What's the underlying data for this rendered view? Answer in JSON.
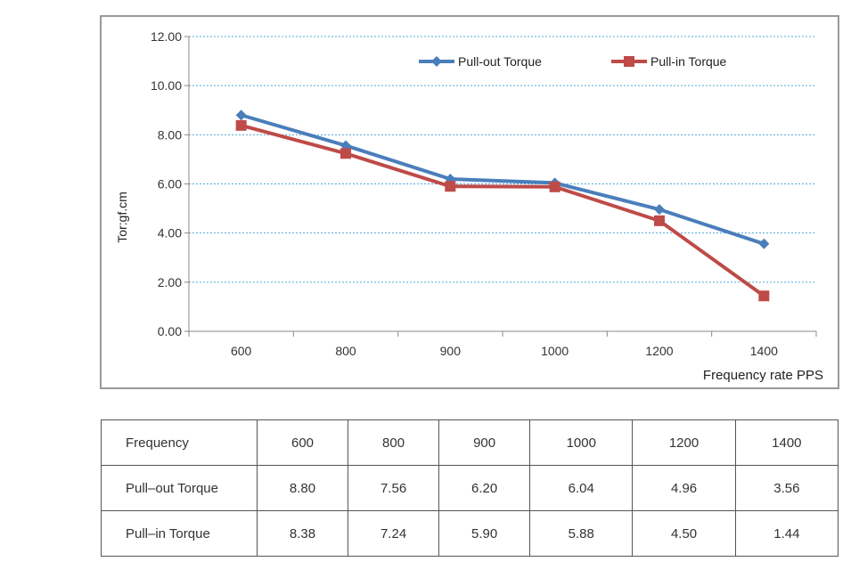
{
  "chart_data": {
    "type": "line",
    "categories": [
      "600",
      "800",
      "900",
      "1000",
      "1200",
      "1400"
    ],
    "series": [
      {
        "name": "Pull-out Torque",
        "values": [
          8.8,
          7.56,
          6.2,
          6.04,
          4.96,
          3.56
        ],
        "color": "#4a7ebb",
        "marker": "diamond"
      },
      {
        "name": "Pull-in Torque",
        "values": [
          8.38,
          7.24,
          5.9,
          5.88,
          4.5,
          1.44
        ],
        "color": "#be4b48",
        "marker": "square"
      }
    ],
    "xlabel": "Frequency rate PPS",
    "ylabel": "Tor:gf.cm",
    "ylim": [
      0,
      12
    ],
    "yticks": [
      "0.00",
      "2.00",
      "4.00",
      "6.00",
      "8.00",
      "10.00",
      "12.00"
    ],
    "grid": true,
    "legend": "top-right"
  },
  "table": {
    "rows": [
      [
        "Frequency",
        "600",
        "800",
        "900",
        "1000",
        "1200",
        "1400"
      ],
      [
        "Pull–out Torque",
        "8.80",
        "7.56",
        "6.20",
        "6.04",
        "4.96",
        "3.56"
      ],
      [
        "Pull–in Torque",
        "8.38",
        "7.24",
        "5.90",
        "5.88",
        "4.50",
        "1.44"
      ]
    ]
  }
}
